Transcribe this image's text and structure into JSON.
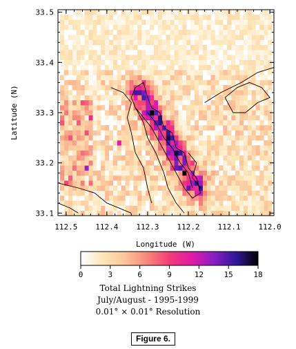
{
  "chart_data": {
    "type": "heatmap",
    "xlabel": "Longitude (W)",
    "ylabel": "Latitude (N)",
    "x_ticks": [
      "112.5",
      "112.4",
      "112.3",
      "112.2",
      "112.1",
      "112.0"
    ],
    "y_ticks": [
      "33.1",
      "33.2",
      "33.3",
      "33.4",
      "33.5"
    ],
    "xlim": [
      112.52,
      111.99
    ],
    "ylim": [
      33.095,
      33.505
    ],
    "colorbar": {
      "ticks": [
        "0",
        "3",
        "6",
        "9",
        "12",
        "15",
        "18"
      ],
      "range": [
        0,
        18
      ],
      "colors": [
        "#ffffff",
        "#fde6b8",
        "#fcc49a",
        "#f7877a",
        "#f23c78",
        "#e21aa8",
        "#8a1ec4",
        "#30179a",
        "#000000"
      ]
    },
    "caption_lines": [
      "Total Lightning Strikes",
      "July/August - 1995-1999",
      "0.01° × 0.01° Resolution"
    ],
    "cell_size_deg": 0.01,
    "hotspots": [
      {
        "lon": 112.27,
        "lat": 33.28,
        "value": 16
      },
      {
        "lon": 112.25,
        "lat": 33.24,
        "value": 15
      },
      {
        "lon": 112.23,
        "lat": 33.22,
        "value": 17
      },
      {
        "lon": 112.21,
        "lat": 33.2,
        "value": 14
      },
      {
        "lon": 112.29,
        "lat": 33.31,
        "value": 12
      },
      {
        "lon": 112.45,
        "lat": 33.19,
        "value": 13
      },
      {
        "lon": 112.44,
        "lat": 33.29,
        "value": 10
      },
      {
        "lon": 112.33,
        "lat": 33.33,
        "value": 11
      },
      {
        "lon": 112.19,
        "lat": 33.18,
        "value": 13
      },
      {
        "lon": 112.37,
        "lat": 33.24,
        "value": 11
      }
    ],
    "figure_label": "Figure 6."
  }
}
